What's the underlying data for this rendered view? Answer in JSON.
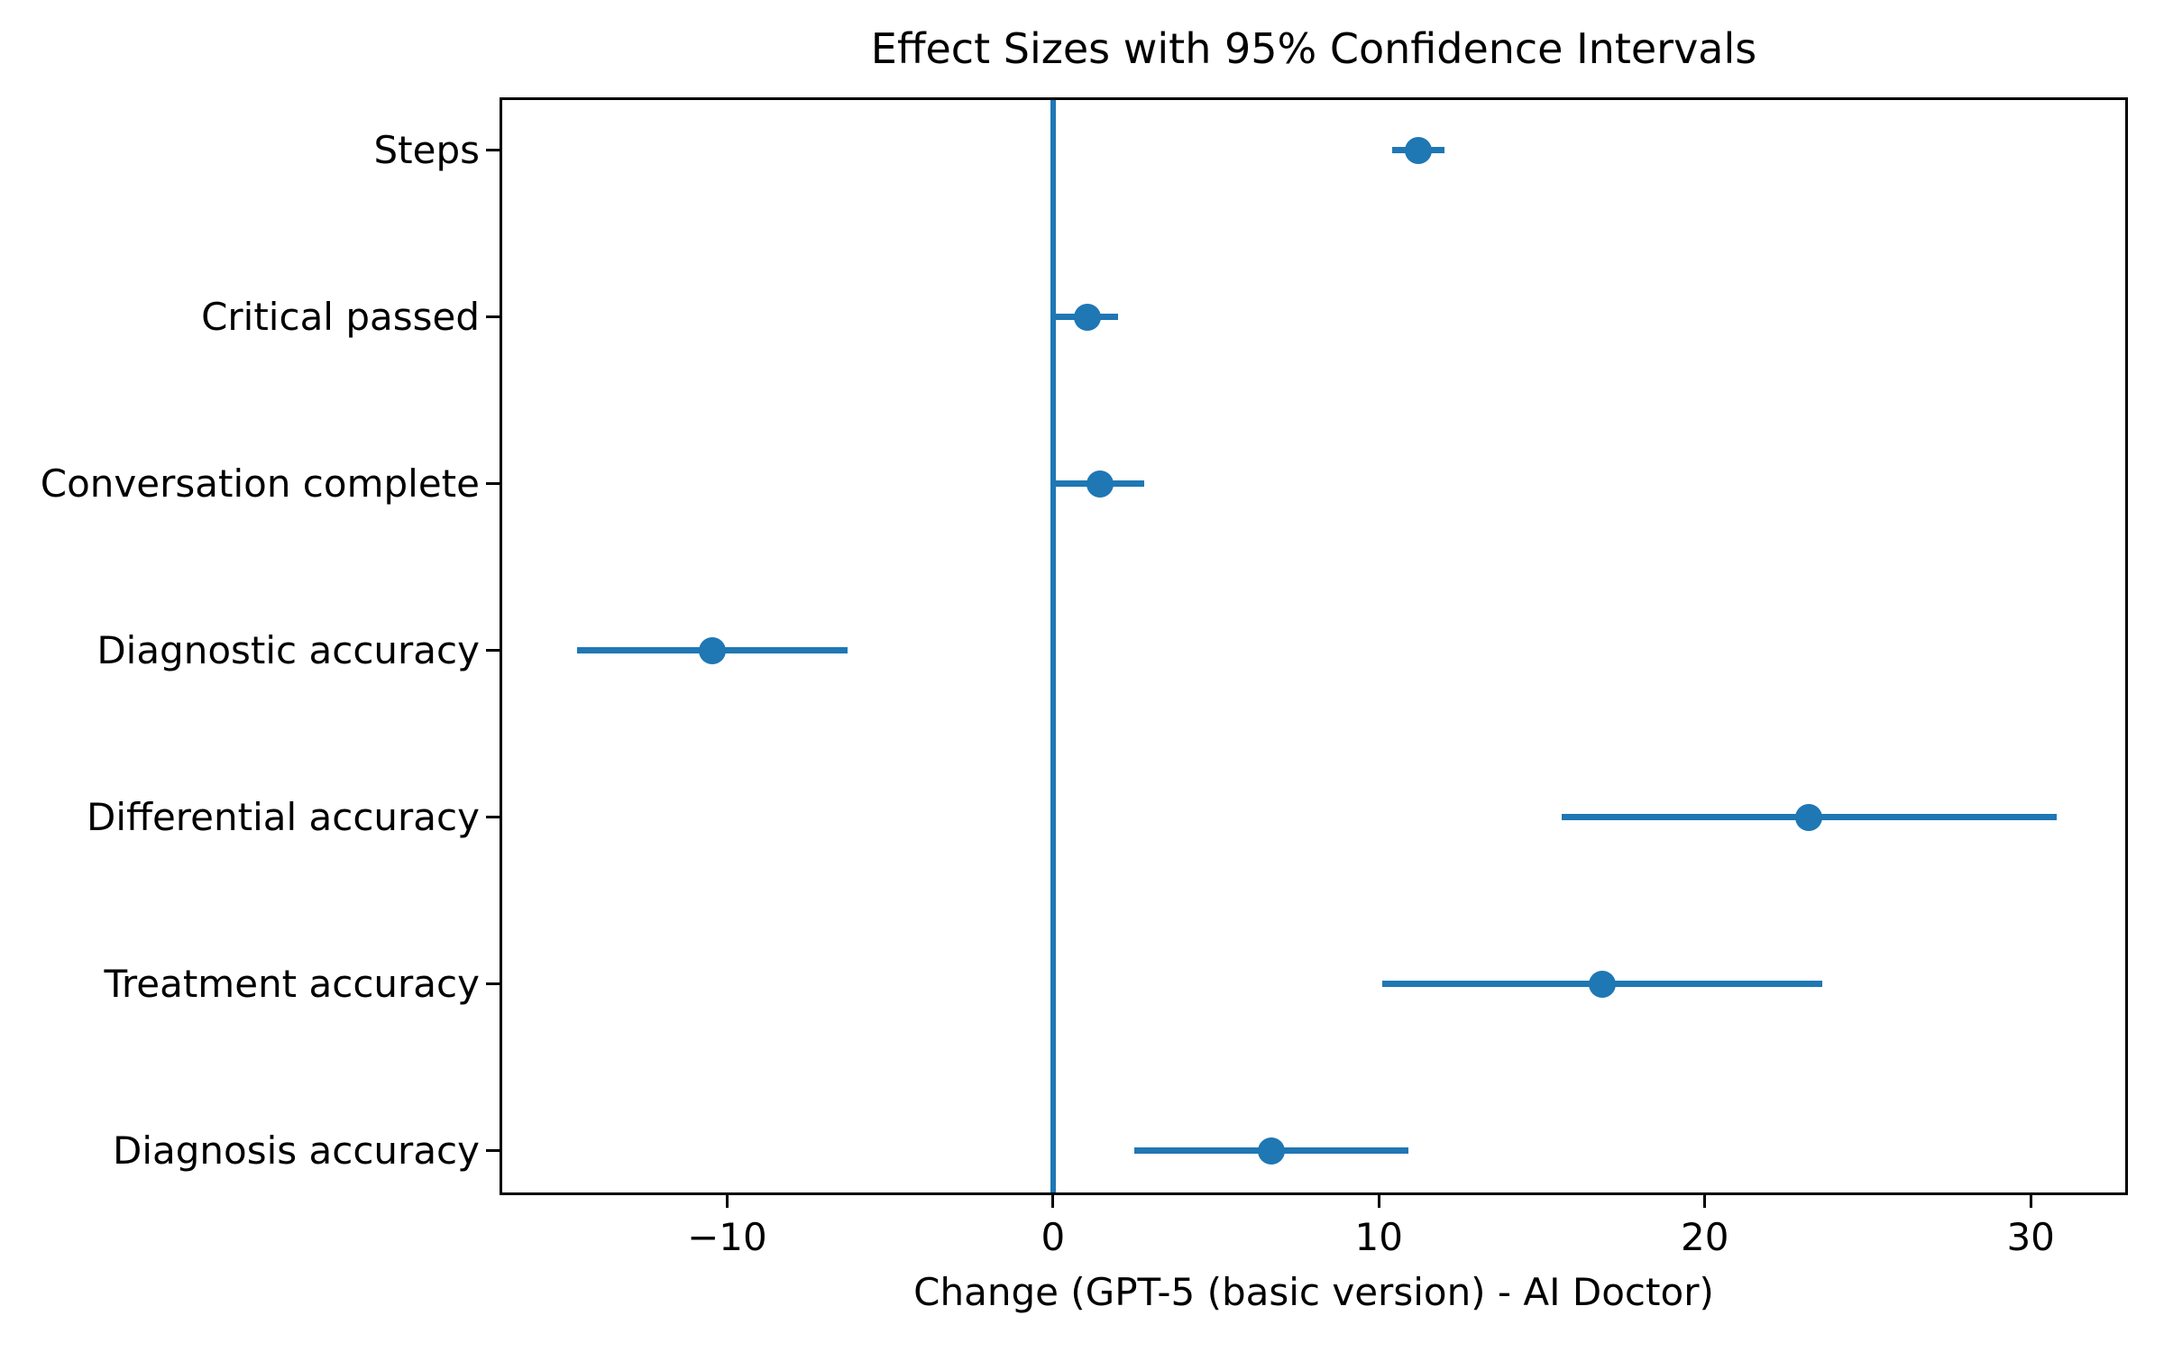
{
  "chart_data": {
    "type": "scatter",
    "subtype": "horizontal-errorbar-dot-plot",
    "title": "Effect Sizes with 95% Confidence Intervals",
    "xlabel": "Change (GPT-5 (basic version) - AI Doctor)",
    "ylabel": "",
    "categories": [
      "Steps",
      "Critical passed",
      "Conversation complete",
      "Diagnostic accuracy",
      "Differential accuracy",
      "Treatment accuracy",
      "Diagnosis accuracy"
    ],
    "values": [
      11.2,
      1.05,
      1.45,
      -10.45,
      23.2,
      16.85,
      6.7
    ],
    "ci_low": [
      10.4,
      0.1,
      0.1,
      -14.6,
      15.6,
      10.1,
      2.5
    ],
    "ci_high": [
      12.0,
      2.0,
      2.8,
      -6.3,
      30.8,
      23.6,
      10.9
    ],
    "x_ticks": [
      -10,
      0,
      10,
      20,
      30
    ],
    "x_tick_labels": [
      "−10",
      "0",
      "10",
      "20",
      "30"
    ],
    "xlim": [
      -16.9,
      32.9
    ],
    "reference_line_x": 0,
    "grid": false,
    "legend": "none",
    "colors": {
      "marker": "#1f77b4",
      "error_bar": "#1f77b4",
      "reference_line": "#1f77b4",
      "axis": "#000000",
      "background": "#ffffff"
    }
  }
}
